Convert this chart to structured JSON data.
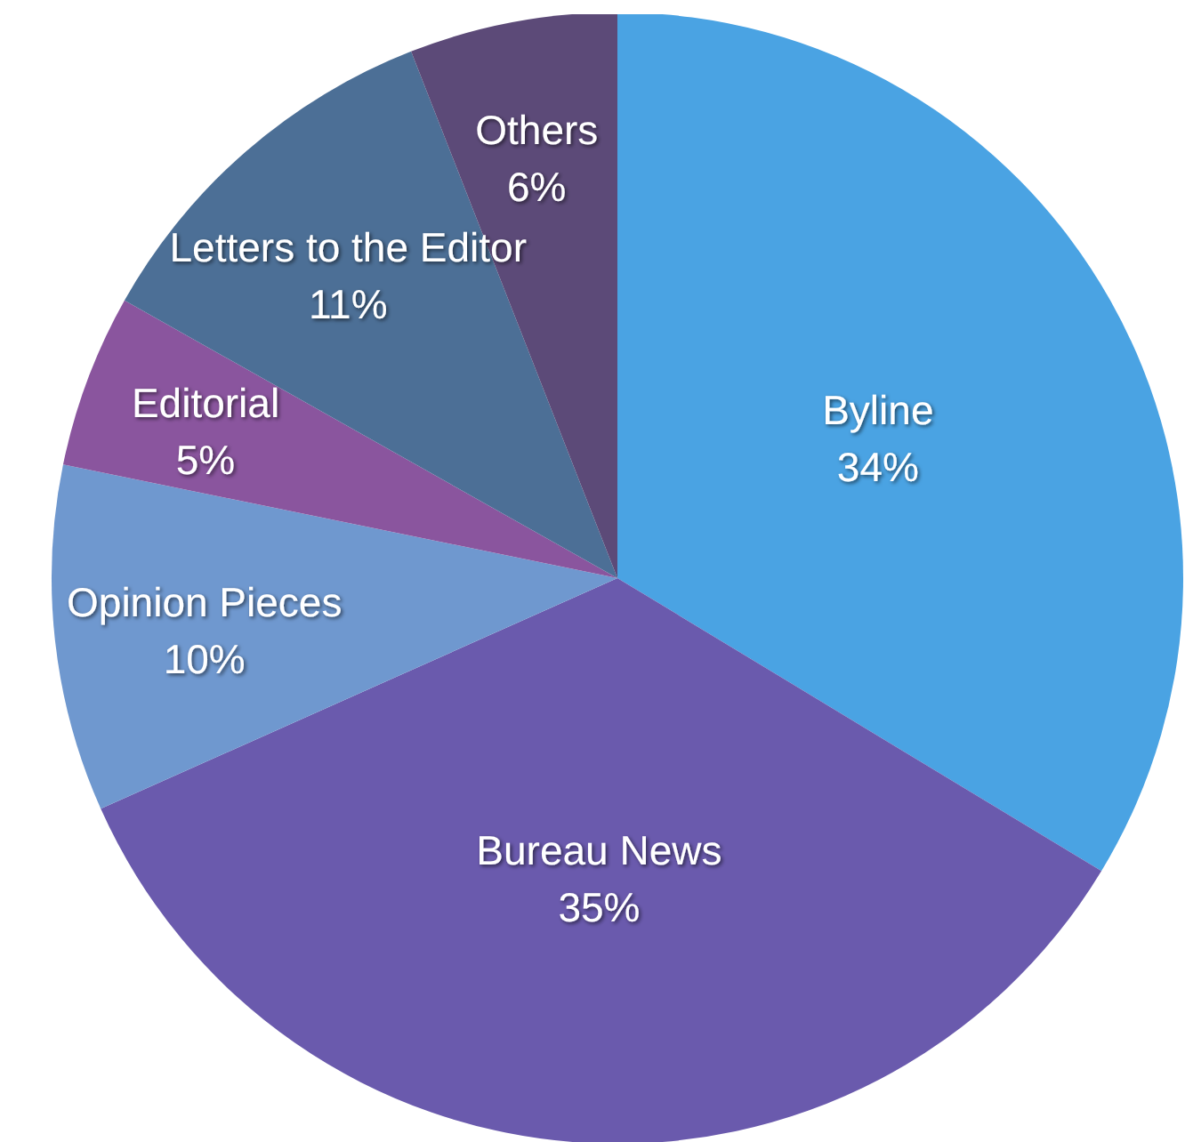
{
  "chart_data": {
    "type": "pie",
    "categories": [
      "Byline",
      "Bureau News",
      "Opinion Pieces",
      "Editorial",
      "Letters to the Editor",
      "Others"
    ],
    "values": [
      34,
      35,
      10,
      5,
      11,
      6
    ],
    "value_labels": [
      "34%",
      "35%",
      "10%",
      "5%",
      "11%",
      "6%"
    ],
    "colors": [
      "#4aa3e3",
      "#6a5aad",
      "#6f98cf",
      "#8a559e",
      "#4c6f96",
      "#5c4a78"
    ],
    "legend": false
  }
}
